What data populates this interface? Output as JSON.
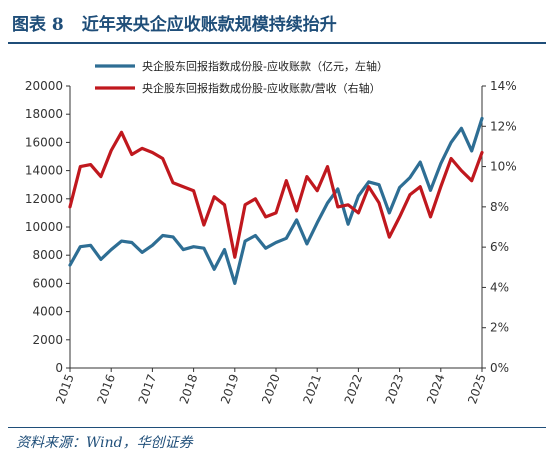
{
  "figure": {
    "label": "图表 8",
    "title": "近年来央企应收账款规模持续抬升",
    "source": "资料来源：Wind，华创证券"
  },
  "colors": {
    "primary": "#2e6e94",
    "secondary": "#c0181e",
    "title": "#1f4e79"
  },
  "chart_data": {
    "type": "line",
    "x_tick_labels": [
      "2015",
      "2016",
      "2017",
      "2018",
      "2019",
      "2020",
      "2021",
      "2022",
      "2023",
      "2024",
      "2025"
    ],
    "y_left": {
      "range": [
        0,
        20000
      ],
      "ticks": [
        "0",
        "2000",
        "4000",
        "6000",
        "8000",
        "10000",
        "12000",
        "14000",
        "16000",
        "18000",
        "20000"
      ]
    },
    "y_right": {
      "range": [
        0,
        14
      ],
      "ticks": [
        "0%",
        "2%",
        "4%",
        "6%",
        "8%",
        "10%",
        "12%",
        "14%"
      ]
    },
    "grid": false,
    "legend_position": "top-center",
    "series": [
      {
        "name": "央企股东回报指数成份股-应收账款（亿元，左轴）",
        "axis": "left",
        "x": [
          2015.0,
          2015.25,
          2015.5,
          2015.75,
          2016.0,
          2016.25,
          2016.5,
          2016.75,
          2017.0,
          2017.25,
          2017.5,
          2017.75,
          2018.0,
          2018.25,
          2018.5,
          2018.75,
          2019.0,
          2019.25,
          2019.5,
          2019.75,
          2020.0,
          2020.25,
          2020.5,
          2020.75,
          2021.0,
          2021.25,
          2021.5,
          2021.75,
          2022.0,
          2022.25,
          2022.5,
          2022.75,
          2023.0,
          2023.25,
          2023.5,
          2023.75,
          2024.0,
          2024.25,
          2024.5,
          2024.75,
          2025.0
        ],
        "values": [
          7300,
          8600,
          8700,
          7700,
          8400,
          9000,
          8900,
          8200,
          8700,
          9400,
          9300,
          8400,
          8600,
          8500,
          7000,
          8400,
          6000,
          9000,
          9400,
          8500,
          8900,
          9200,
          10500,
          8800,
          10300,
          11700,
          12700,
          10200,
          12200,
          13200,
          13000,
          11000,
          12800,
          13500,
          14600,
          12600,
          14500,
          16000,
          17000,
          15400,
          17700
        ]
      },
      {
        "name": "央企股东回报指数成份股-应收账款/营收（右轴）",
        "axis": "right",
        "x": [
          2015.0,
          2015.25,
          2015.5,
          2015.75,
          2016.0,
          2016.25,
          2016.5,
          2016.75,
          2017.0,
          2017.25,
          2017.5,
          2017.75,
          2018.0,
          2018.25,
          2018.5,
          2018.75,
          2019.0,
          2019.25,
          2019.5,
          2019.75,
          2020.0,
          2020.25,
          2020.5,
          2020.75,
          2021.0,
          2021.25,
          2021.5,
          2021.75,
          2022.0,
          2022.25,
          2022.5,
          2022.75,
          2023.0,
          2023.25,
          2023.5,
          2023.75,
          2024.0,
          2024.25,
          2024.5,
          2024.75,
          2025.0
        ],
        "values": [
          8.0,
          10.0,
          10.1,
          9.5,
          10.8,
          11.7,
          10.6,
          10.9,
          10.7,
          10.4,
          9.2,
          9.0,
          8.8,
          7.1,
          8.5,
          8.1,
          5.5,
          8.1,
          8.4,
          7.5,
          7.7,
          9.3,
          7.8,
          9.5,
          8.8,
          10.0,
          8.0,
          8.1,
          7.7,
          9.0,
          8.2,
          6.5,
          7.5,
          8.6,
          9.0,
          7.5,
          9.0,
          10.4,
          9.8,
          9.3,
          10.7
        ]
      }
    ]
  }
}
